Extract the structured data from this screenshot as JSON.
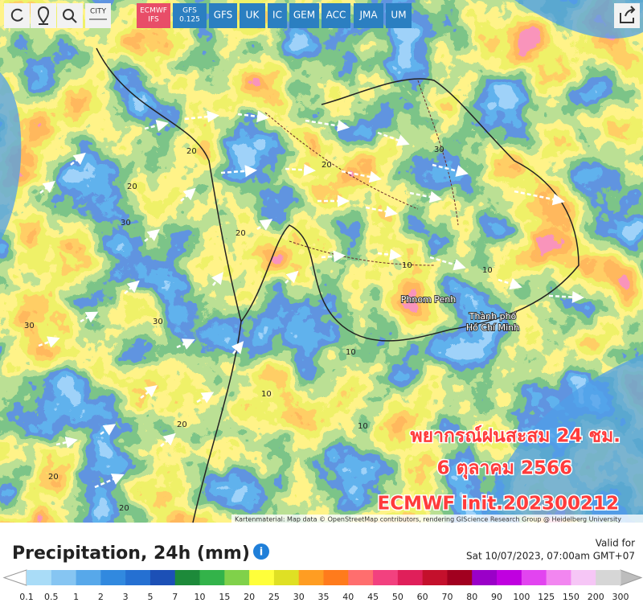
{
  "toolbar": {
    "city": "CITY",
    "models": [
      [
        "ECMWF",
        "IFS"
      ],
      [
        "GFS",
        "0.125"
      ],
      [
        "GFS"
      ],
      [
        "UK"
      ],
      [
        "IC"
      ],
      [
        "GEM"
      ],
      [
        "ACC"
      ],
      [
        "JMA"
      ],
      [
        "UM"
      ]
    ]
  },
  "map_labels": {
    "cities": [
      "Phnom Penh",
      "Thành phố",
      "Hồ Chí Minh"
    ],
    "contours": [
      "20",
      "30",
      "10",
      "20",
      "30",
      "20",
      "10",
      "30",
      "20",
      "10",
      "20",
      "10",
      "20",
      "30",
      "10",
      "20"
    ]
  },
  "overlay": [
    "พยากรณ์ฝนสะสม 24 ชม.",
    "6 ตุลาคม 2566",
    "ECMWF init.202300212"
  ],
  "attribution": "Kartenmaterial: Map data © OpenStreetMap contributors, rendering GIScience Research Group @ Heidelberg University",
  "legend": {
    "title": "Precipitation, 24h (mm)",
    "valid_label": "Valid for",
    "valid_time": "Sat 10/07/2023, 07:00am GMT+07",
    "ticks": [
      0.1,
      0.5,
      1,
      2,
      3,
      5,
      7,
      10,
      15,
      20,
      25,
      30,
      35,
      40,
      45,
      50,
      60,
      70,
      80,
      90,
      100,
      125,
      150,
      200,
      300
    ],
    "colors": [
      "#a9dcf7",
      "#86c5f2",
      "#57a8ea",
      "#3189df",
      "#2570d2",
      "#1c50b6",
      "#1d8a3a",
      "#33b34a",
      "#80d14a",
      "#ffff3a",
      "#dfe024",
      "#ff9d22",
      "#ff7b1c",
      "#ff6e6e",
      "#f2417f",
      "#e01f5a",
      "#c4102c",
      "#a1001f",
      "#9a00c8",
      "#c000e0",
      "#e244f0",
      "#f286f0",
      "#f6c6f6",
      "#d6d6d6"
    ]
  }
}
